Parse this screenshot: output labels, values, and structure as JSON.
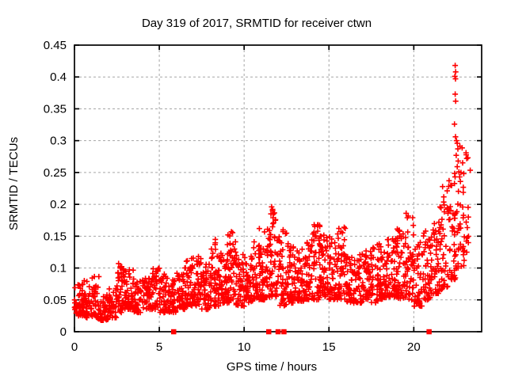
{
  "chart_data": {
    "type": "scatter",
    "title": "Day 319 of 2017, SRMTID for receiver ctwn",
    "xlabel": "GPS time / hours",
    "ylabel": "SRMTID / TECUs",
    "xlim": [
      0,
      24
    ],
    "ylim": [
      0,
      0.45
    ],
    "xticks": [
      0,
      5,
      10,
      15,
      20
    ],
    "yticks": [
      0,
      0.05,
      0.1,
      0.15,
      0.2,
      0.25,
      0.3,
      0.35,
      0.4,
      0.45
    ],
    "grid": "dashed",
    "grid_color": "#a6a6a6",
    "border_color": "#000000",
    "background_color": "#ffffff",
    "marker": {
      "shape": "plus",
      "color": "#ff0000",
      "size": 7,
      "stroke": 1.6
    },
    "zero_marker": {
      "shape": "filled-square",
      "color": "#ff0000",
      "size": 6.5
    },
    "zero_marker_times": [
      5.85,
      11.45,
      12.0,
      12.35,
      20.9
    ],
    "seed": 319,
    "density_bands_t0_t1_n_lo_hi": [
      [
        0,
        0.5,
        40,
        0.025,
        0.075
      ],
      [
        0.5,
        1,
        40,
        0.022,
        0.082
      ],
      [
        1,
        1.5,
        40,
        0.02,
        0.088
      ],
      [
        1.5,
        2,
        40,
        0.018,
        0.062
      ],
      [
        2,
        2.5,
        40,
        0.022,
        0.072
      ],
      [
        2.5,
        3,
        45,
        0.03,
        0.108
      ],
      [
        3,
        3.5,
        45,
        0.035,
        0.098
      ],
      [
        3.5,
        4,
        40,
        0.03,
        0.082
      ],
      [
        4,
        4.5,
        42,
        0.035,
        0.092
      ],
      [
        4.5,
        5,
        42,
        0.035,
        0.1
      ],
      [
        5,
        5.5,
        42,
        0.03,
        0.095
      ],
      [
        5.5,
        6,
        42,
        0.03,
        0.082
      ],
      [
        6,
        6.5,
        42,
        0.035,
        0.092
      ],
      [
        6.5,
        7,
        45,
        0.04,
        0.112
      ],
      [
        7,
        7.5,
        45,
        0.04,
        0.118
      ],
      [
        7.5,
        8,
        44,
        0.035,
        0.11
      ],
      [
        8,
        8.5,
        48,
        0.04,
        0.142
      ],
      [
        8.5,
        9,
        48,
        0.045,
        0.125
      ],
      [
        9,
        9.5,
        50,
        0.045,
        0.157
      ],
      [
        9.5,
        10,
        48,
        0.04,
        0.128
      ],
      [
        10,
        10.5,
        48,
        0.045,
        0.122
      ],
      [
        10.5,
        11,
        48,
        0.05,
        0.145
      ],
      [
        11,
        11.5,
        48,
        0.05,
        0.165
      ],
      [
        11.5,
        12,
        50,
        0.055,
        0.196
      ],
      [
        12,
        12.5,
        44,
        0.04,
        0.16
      ],
      [
        12.5,
        13,
        46,
        0.045,
        0.142
      ],
      [
        13,
        13.5,
        46,
        0.048,
        0.132
      ],
      [
        13.5,
        14,
        46,
        0.05,
        0.148
      ],
      [
        14,
        14.5,
        50,
        0.05,
        0.168
      ],
      [
        14.5,
        15,
        50,
        0.055,
        0.152
      ],
      [
        15,
        15.5,
        50,
        0.05,
        0.158
      ],
      [
        15.5,
        16,
        50,
        0.05,
        0.163
      ],
      [
        16,
        16.5,
        46,
        0.045,
        0.128
      ],
      [
        16.5,
        17,
        46,
        0.045,
        0.122
      ],
      [
        17,
        17.5,
        46,
        0.05,
        0.132
      ],
      [
        17.5,
        18,
        46,
        0.045,
        0.138
      ],
      [
        18,
        18.5,
        46,
        0.05,
        0.152
      ],
      [
        18.5,
        19,
        46,
        0.055,
        0.148
      ],
      [
        19,
        19.5,
        46,
        0.05,
        0.162
      ],
      [
        19.5,
        20,
        46,
        0.05,
        0.187
      ],
      [
        20,
        20.5,
        42,
        0.04,
        0.142
      ],
      [
        20.5,
        21,
        42,
        0.05,
        0.162
      ],
      [
        21,
        21.5,
        42,
        0.06,
        0.187
      ],
      [
        21.5,
        22,
        44,
        0.065,
        0.235
      ],
      [
        22,
        22.5,
        46,
        0.08,
        0.27
      ],
      [
        22.5,
        23,
        34,
        0.1,
        0.3
      ],
      [
        23,
        23.35,
        12,
        0.12,
        0.285
      ]
    ],
    "notable_points_t_v": [
      [
        2.6,
        0.107
      ],
      [
        6.9,
        0.115
      ],
      [
        8.3,
        0.145
      ],
      [
        9.05,
        0.152
      ],
      [
        9.25,
        0.157
      ],
      [
        10.9,
        0.162
      ],
      [
        11.62,
        0.196
      ],
      [
        11.68,
        0.19
      ],
      [
        11.58,
        0.185
      ],
      [
        11.7,
        0.179
      ],
      [
        11.74,
        0.171
      ],
      [
        12.3,
        0.16
      ],
      [
        14.35,
        0.168
      ],
      [
        15.9,
        0.164
      ],
      [
        19.55,
        0.186
      ],
      [
        19.62,
        0.179
      ],
      [
        20.7,
        0.158
      ],
      [
        22.44,
        0.418
      ],
      [
        22.47,
        0.408
      ],
      [
        22.42,
        0.401
      ],
      [
        22.46,
        0.397
      ],
      [
        22.44,
        0.373
      ],
      [
        22.47,
        0.362
      ],
      [
        22.4,
        0.326
      ],
      [
        22.46,
        0.306
      ],
      [
        22.52,
        0.3
      ],
      [
        22.56,
        0.296
      ],
      [
        22.6,
        0.287
      ],
      [
        22.5,
        0.277
      ],
      [
        22.62,
        0.268
      ],
      [
        22.56,
        0.259
      ],
      [
        22.66,
        0.251
      ],
      [
        22.7,
        0.243
      ],
      [
        22.75,
        0.236
      ],
      [
        22.88,
        0.131
      ],
      [
        22.92,
        0.121
      ],
      [
        23.08,
        0.281
      ],
      [
        23.12,
        0.272
      ]
    ]
  }
}
